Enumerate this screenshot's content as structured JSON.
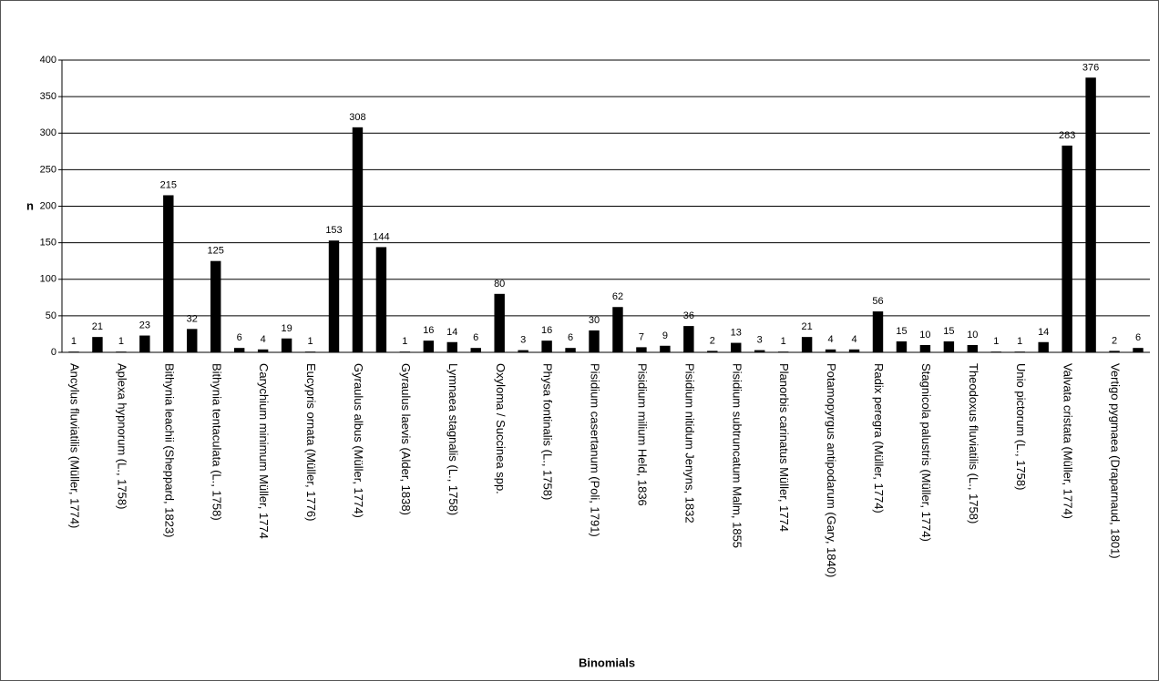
{
  "chart_data": {
    "type": "bar",
    "x_label": "Binomials",
    "y_label": "n",
    "categories": [
      "Ancylus fluviatilis (Müller, 1774)",
      null,
      "Aplexa hypnorum (L., 1758)",
      null,
      "Bithynia leachii (Sheppard, 1823)",
      null,
      "Bithynia tentaculata (L., 1758)",
      null,
      "Carychium minimum Müller, 1774",
      null,
      "Eucypris ornata (Müller, 1776)",
      null,
      "Gyraulus albus (Müller, 1774)",
      null,
      "Gyraulus laevis (Alder, 1838)",
      null,
      "Lymnaea stagnalis (L., 1758)",
      null,
      "Oxyloma / Succinea spp.",
      null,
      "Physa fontinalis (L., 1758)",
      null,
      "Pisidium casertanum (Poli, 1791)",
      null,
      "Pisidium milium Held, 1836",
      null,
      "Pisidium nitidum Jenyns, 1832",
      null,
      "Pisidium subtruncatum Malm, 1855",
      null,
      "Planorbis carinatus Müller, 1774",
      null,
      "Potamopyrgus antipodarum (Gary, 1840)",
      null,
      "Radix peregra (Müller, 1774)",
      null,
      "Stagnicola palustris (Müller, 1774)",
      null,
      "Theodoxus fluviatilis (L., 1758)",
      null,
      "Unio pictorum (L., 1758)",
      null,
      "Valvata cristata (Müller, 1774)",
      null,
      "Vertigo pygmaea (Draparnaud, 1801)",
      null
    ],
    "values": [
      1,
      21,
      1,
      23,
      215,
      32,
      125,
      6,
      4,
      19,
      1,
      153,
      308,
      144,
      1,
      16,
      14,
      6,
      80,
      3,
      16,
      6,
      30,
      62,
      7,
      9,
      36,
      2,
      13,
      3,
      1,
      21,
      4,
      4,
      56,
      15,
      10,
      15,
      10,
      1,
      1,
      14,
      283,
      376,
      2,
      6
    ],
    "color": "#000000",
    "ylim": [
      0,
      400
    ],
    "yticks": [
      0,
      50,
      100,
      150,
      200,
      250,
      300,
      350,
      400
    ],
    "grid": true
  }
}
